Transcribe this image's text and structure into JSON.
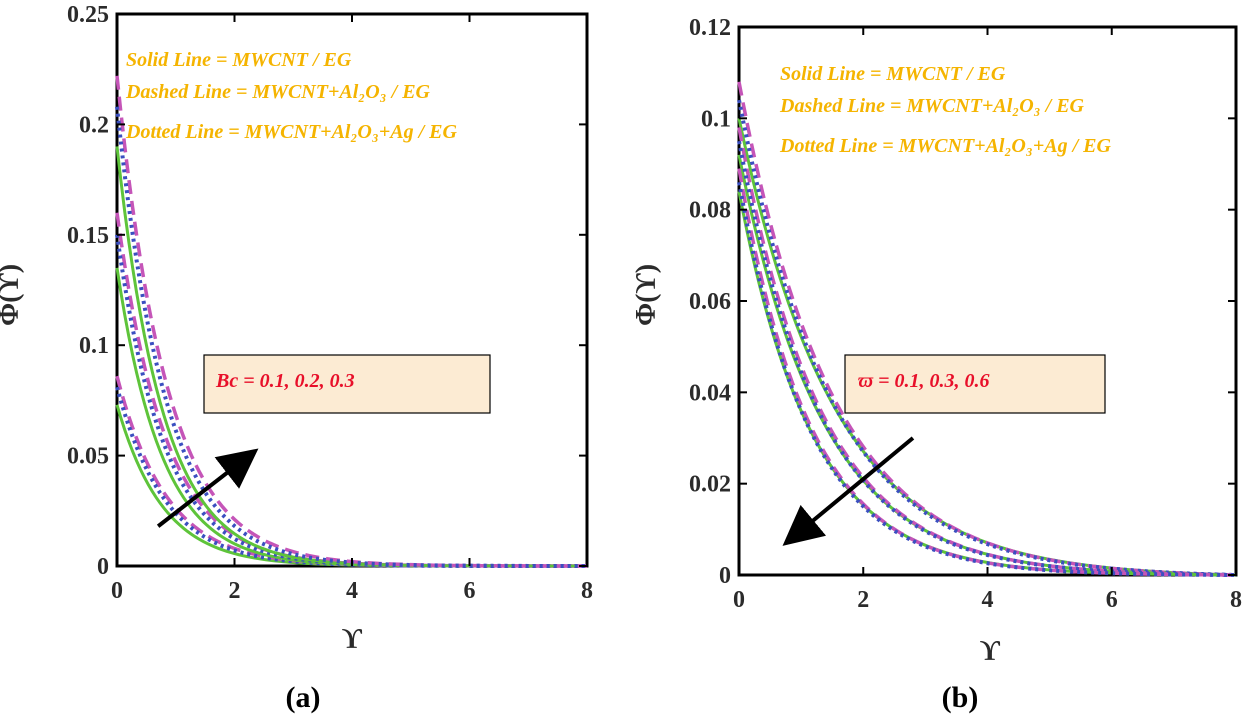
{
  "colors": {
    "solid": "#5ec43a",
    "dashed": "#c555b8",
    "dotted": "#3a4fc0",
    "legend_text": "#f5b400",
    "annotation_text": "#e8102a",
    "annotation_fill": "#fcebd3",
    "axis": "#000000"
  },
  "chart_data": [
    {
      "type": "line",
      "caption": "(a)",
      "xlabel": "ϒ",
      "ylabel": "Φ(ϒ)",
      "xlim": [
        0,
        8
      ],
      "ylim": [
        0,
        0.25
      ],
      "xticks": [
        0,
        2,
        4,
        6,
        8
      ],
      "yticks": [
        0,
        0.05,
        0.1,
        0.15,
        0.2,
        0.25
      ],
      "ytick_labels": [
        "0",
        "0.05",
        "0.1",
        "0.15",
        "0.2",
        "0.25"
      ],
      "legend": [
        "Solid Line = MWCNT / EG",
        "Dashed Line = MWCNT+Al₂O₃ / EG",
        "Dotted Line = MWCNT+Al₂O₃+Ag / EG"
      ],
      "annotation": "Bc = 0.1, 0.2, 0.3",
      "arrow": {
        "from": [
          0.7,
          0.018
        ],
        "to": [
          2.3,
          0.051
        ],
        "direction": "increasing"
      },
      "series": [
        {
          "name": "MWCNT / EG, Bc = 0.1",
          "style": "solid",
          "y0": 0.073,
          "decay": 0.78
        },
        {
          "name": "MWCNT+Al2O3 / EG, Bc = 0.1",
          "style": "dashed",
          "y0": 0.086,
          "decay": 0.84
        },
        {
          "name": "MWCNT+Al2O3+Ag / EG, Bc = 0.1",
          "style": "dotted",
          "y0": 0.081,
          "decay": 0.82
        },
        {
          "name": "MWCNT / EG, Bc = 0.2",
          "style": "solid",
          "y0": 0.135,
          "decay": 0.77
        },
        {
          "name": "MWCNT+Al2O3 / EG, Bc = 0.2",
          "style": "dashed",
          "y0": 0.16,
          "decay": 0.82
        },
        {
          "name": "MWCNT+Al2O3+Ag / EG, Bc = 0.2",
          "style": "dotted",
          "y0": 0.15,
          "decay": 0.8
        },
        {
          "name": "MWCNT / EG, Bc = 0.3",
          "style": "solid",
          "y0": 0.19,
          "decay": 0.78
        },
        {
          "name": "MWCNT+Al2O3 / EG, Bc = 0.3",
          "style": "dashed",
          "y0": 0.222,
          "decay": 0.85
        },
        {
          "name": "MWCNT+Al2O3+Ag / EG, Bc = 0.3",
          "style": "dotted",
          "y0": 0.208,
          "decay": 0.82
        }
      ]
    },
    {
      "type": "line",
      "caption": "(b)",
      "xlabel": "ϒ",
      "ylabel": "Φ(ϒ)",
      "xlim": [
        0,
        8
      ],
      "ylim": [
        0,
        0.12
      ],
      "xticks": [
        0,
        2,
        4,
        6,
        8
      ],
      "yticks": [
        0,
        0.02,
        0.04,
        0.06,
        0.08,
        0.1,
        0.12
      ],
      "ytick_labels": [
        "0",
        "0.02",
        "0.04",
        "0.06",
        "0.08",
        "0.1",
        "0.12"
      ],
      "legend": [
        "Solid Line = MWCNT / EG",
        "Dashed Line = MWCNT+Al₂O₃ / EG",
        "Dotted Line = MWCNT+Al₂O₃+Ag / EG"
      ],
      "annotation": "ϖ = 0.1, 0.3, 0.6",
      "arrow": {
        "from": [
          2.8,
          0.03
        ],
        "to": [
          0.8,
          0.0075
        ],
        "direction": "decreasing"
      },
      "series": [
        {
          "name": "MWCNT / EG, ϖ = 0.1",
          "style": "solid",
          "y0": 0.1,
          "decay": 1.55
        },
        {
          "name": "MWCNT+Al2O3 / EG, ϖ = 0.1",
          "style": "dashed",
          "y0": 0.108,
          "decay": 1.5
        },
        {
          "name": "MWCNT+Al2O3+Ag / EG, ϖ = 0.1",
          "style": "dotted",
          "y0": 0.104,
          "decay": 1.5
        },
        {
          "name": "MWCNT / EG, ϖ = 0.3",
          "style": "solid",
          "y0": 0.092,
          "decay": 1.35
        },
        {
          "name": "MWCNT+Al2O3 / EG, ϖ = 0.3",
          "style": "dashed",
          "y0": 0.098,
          "decay": 1.32
        },
        {
          "name": "MWCNT+Al2O3+Ag / EG, ϖ = 0.3",
          "style": "dotted",
          "y0": 0.095,
          "decay": 1.32
        },
        {
          "name": "MWCNT / EG, ϖ = 0.6",
          "style": "solid",
          "y0": 0.084,
          "decay": 1.18
        },
        {
          "name": "MWCNT+Al2O3 / EG, ϖ = 0.6",
          "style": "dashed",
          "y0": 0.089,
          "decay": 1.15
        },
        {
          "name": "MWCNT+Al2O3+Ag / EG, ϖ = 0.6",
          "style": "dotted",
          "y0": 0.086,
          "decay": 1.15
        }
      ]
    }
  ]
}
